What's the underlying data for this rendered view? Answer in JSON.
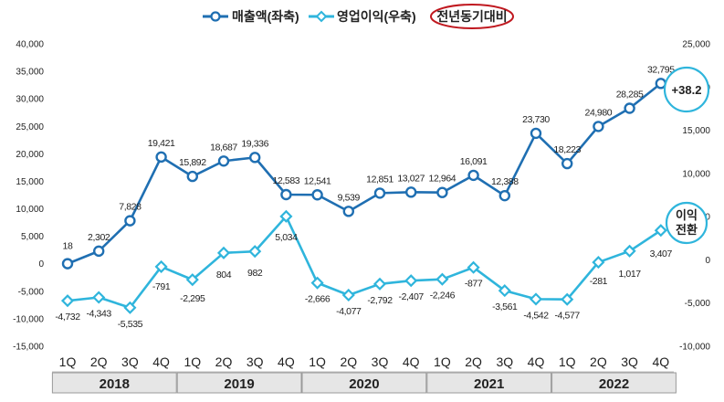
{
  "chart_data": {
    "type": "line",
    "categories": [
      "1Q",
      "2Q",
      "3Q",
      "4Q",
      "1Q",
      "2Q",
      "3Q",
      "4Q",
      "1Q",
      "2Q",
      "3Q",
      "4Q",
      "1Q",
      "2Q",
      "3Q",
      "4Q",
      "1Q",
      "2Q",
      "3Q",
      "4Q"
    ],
    "groups": [
      {
        "label": "2018",
        "count": 4
      },
      {
        "label": "2019",
        "count": 4
      },
      {
        "label": "2020",
        "count": 4
      },
      {
        "label": "2021",
        "count": 4
      },
      {
        "label": "2022",
        "count": 4
      }
    ],
    "series": [
      {
        "name": "매출액(좌축)",
        "axis": "left",
        "color": "#1f6fb2",
        "values": [
          18,
          2302,
          7828,
          19421,
          15892,
          18687,
          19336,
          12583,
          12541,
          9539,
          12851,
          13027,
          12964,
          16091,
          12388,
          23730,
          18223,
          24980,
          28285,
          32795
        ],
        "labels": [
          "18",
          "2,302",
          "7,828",
          "19,421",
          "15,892",
          "18,687",
          "19,336",
          "12,583",
          "12,541",
          "9,539",
          "12,851",
          "13,027",
          "12,964",
          "16,091",
          "12,388",
          "23,730",
          "18,223",
          "24,980",
          "28,285",
          "32,795"
        ]
      },
      {
        "name": "영업이익(우축)",
        "axis": "right",
        "color": "#2fb5dc",
        "values": [
          -4732,
          -4343,
          -5535,
          -791,
          -2295,
          804,
          982,
          5034,
          -2666,
          -4077,
          -2792,
          -2407,
          -2246,
          -877,
          -3561,
          -4542,
          -4577,
          -281,
          1017,
          3407
        ],
        "labels": [
          "-4,732",
          "-4,343",
          "-5,535",
          "-791",
          "-2,295",
          "804",
          "982",
          "5,034",
          "-2,666",
          "-4,077",
          "-2,792",
          "-2,407",
          "-2,246",
          "-877",
          "-3,561",
          "-4,542",
          "-4,577",
          "-281",
          "1,017",
          "3,407"
        ]
      }
    ],
    "left_axis": {
      "range": [
        -15000,
        40000
      ],
      "ticks": [
        -15000,
        -10000,
        -5000,
        0,
        5000,
        10000,
        15000,
        20000,
        25000,
        30000,
        35000,
        40000
      ],
      "tick_labels": [
        "-15,000",
        "-10,000",
        "-5,000",
        "0",
        "5,000",
        "10,000",
        "15,000",
        "20,000",
        "25,000",
        "30,000",
        "35,000",
        "40,000"
      ]
    },
    "right_axis": {
      "range": [
        -10000,
        25000
      ],
      "ticks": [
        -10000,
        -5000,
        0,
        5000,
        10000,
        15000,
        20000,
        25000
      ],
      "tick_labels": [
        "-10,000",
        "-5,000",
        "0",
        "5,000",
        "10,000",
        "15,000",
        "20,000",
        "25,000"
      ]
    },
    "legend": {
      "position": "top",
      "items": [
        "매출액(좌축)",
        "영업이익(우축)"
      ],
      "note": "전년동기대비"
    },
    "annotations": [
      {
        "text": "+38.2",
        "target_series": "매출액(좌축)",
        "target_index": 19
      },
      {
        "text_lines": [
          "이익",
          "전환"
        ],
        "target_series": "영업이익(우축)",
        "target_index": 19
      }
    ],
    "colors": {
      "sales": "#1f6fb2",
      "profit": "#2fb5dc",
      "note_ring": "#c0181f",
      "callout_ring": "#2fb5dc"
    }
  }
}
